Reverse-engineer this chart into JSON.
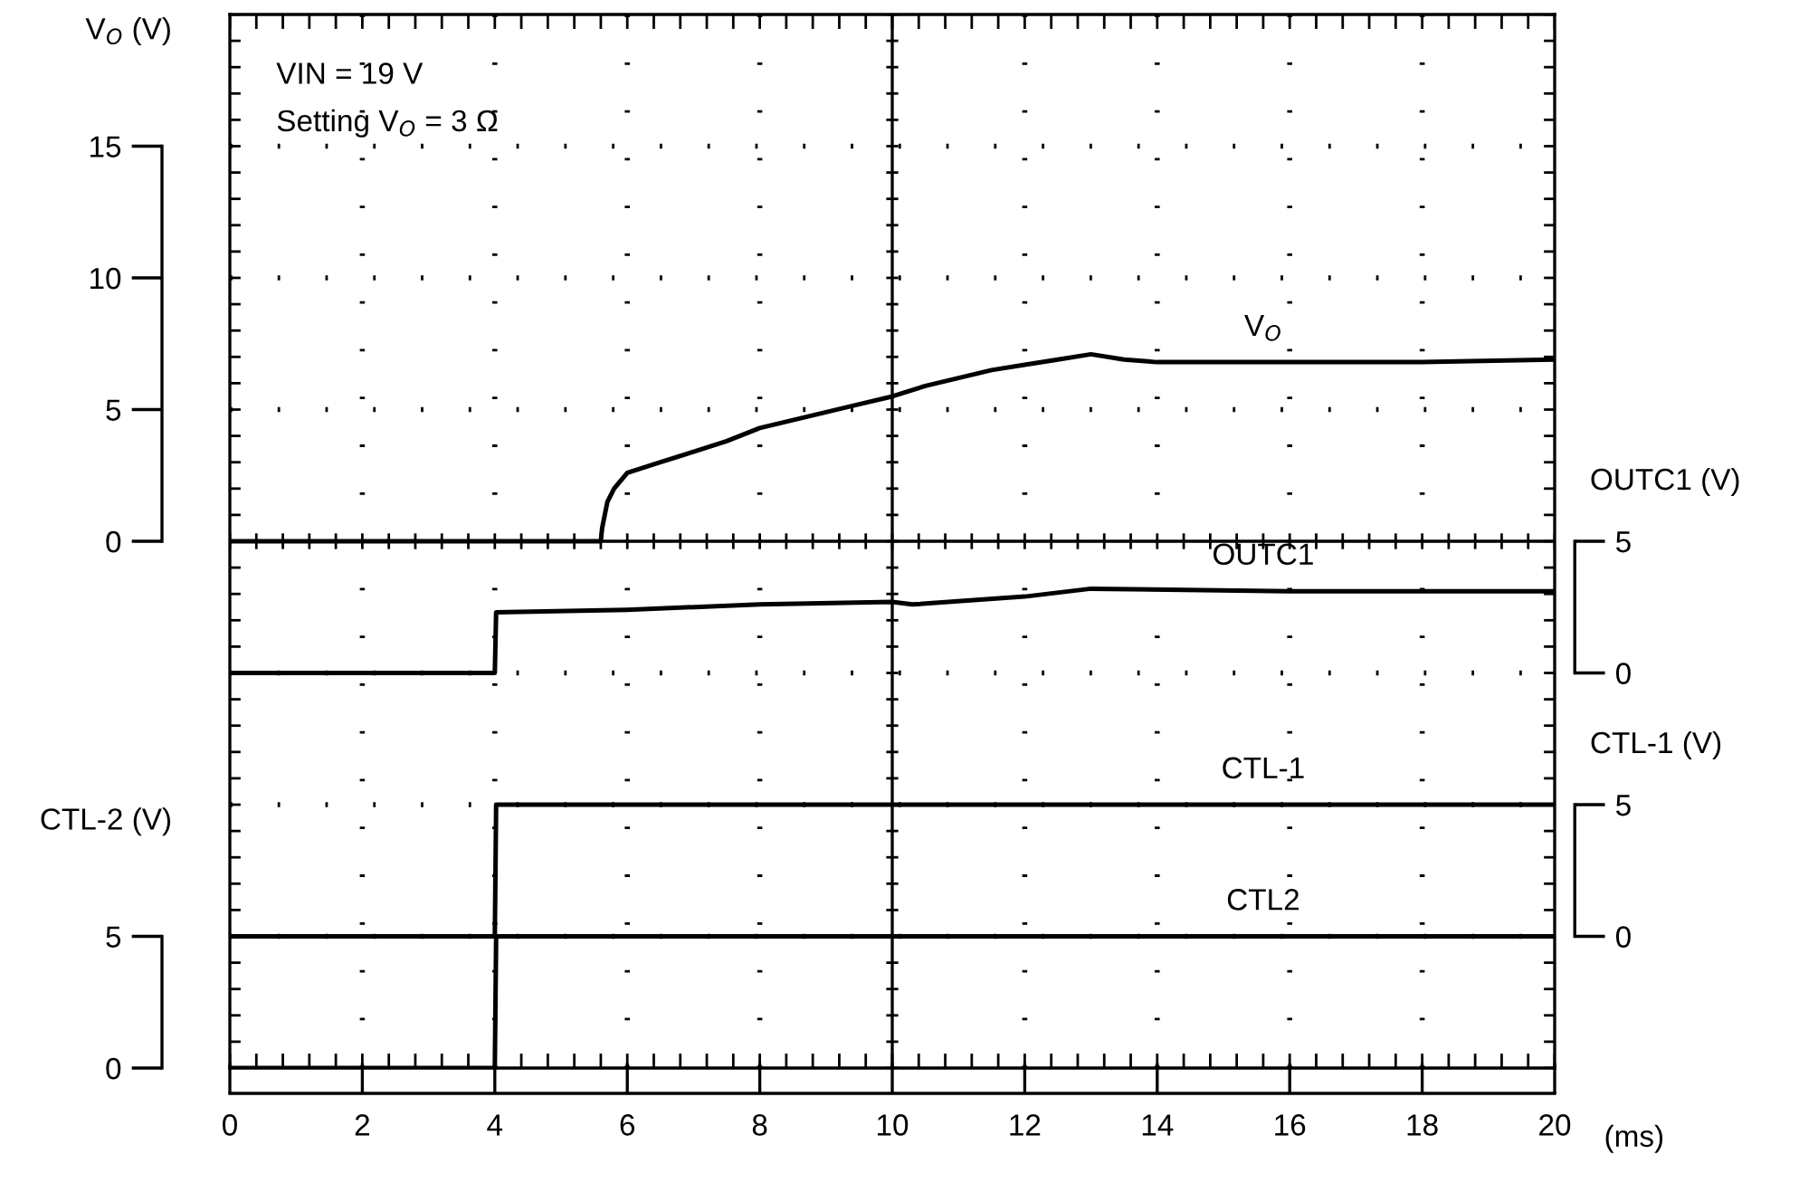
{
  "chart_data": [
    {
      "type": "line",
      "ylabel": "V$_{O}$ (V)",
      "y2label": "OUTC1 (V)",
      "xlim": [
        0,
        20
      ],
      "xticks": [
        0,
        2,
        4,
        6,
        8,
        10,
        12,
        14,
        16,
        18,
        20
      ],
      "ylim": [
        -20,
        20
      ],
      "yticks": [
        0,
        5,
        10,
        15
      ],
      "y2lim": [
        -15,
        25
      ],
      "y2ticks": [
        0,
        5
      ],
      "tick_labels": "y",
      "grid": true,
      "line_style": "solid",
      "marker": "none",
      "annotations": [
        "VIN = 19 V",
        "Setting V$_{O}$ = 3 Ω"
      ],
      "series": [
        {
          "name": "V$_{O}$",
          "color": "#000000",
          "x": [
            0,
            5.6,
            5.62,
            5.7,
            5.8,
            6,
            6.5,
            7,
            7.5,
            8,
            8.5,
            9,
            9.5,
            10,
            10.5,
            11,
            11.5,
            12,
            12.5,
            13,
            13.5,
            14,
            16,
            18,
            20
          ],
          "values": [
            0,
            0,
            0.5,
            1.5,
            2.0,
            2.6,
            3.0,
            3.4,
            3.8,
            4.3,
            4.6,
            4.9,
            5.2,
            5.5,
            5.9,
            6.2,
            6.5,
            6.7,
            6.9,
            7.1,
            6.9,
            6.8,
            6.8,
            6.8,
            6.9
          ]
        },
        {
          "name": "OUTC1",
          "color": "#000000",
          "axis": "y2",
          "x": [
            0,
            4,
            4.02,
            6,
            8,
            10,
            10.3,
            12,
            13,
            16,
            20
          ],
          "values": [
            0,
            0,
            2.3,
            2.4,
            2.6,
            2.7,
            2.6,
            2.9,
            3.2,
            3.1,
            3.1
          ]
        }
      ]
    },
    {
      "type": "line",
      "xlabel": "(ms)",
      "ylabel": "CTL-2 (V)",
      "y2label": "CTL-1 (V)",
      "xlim": [
        0,
        20
      ],
      "xticks": [
        0,
        2,
        4,
        6,
        8,
        10,
        12,
        14,
        16,
        18,
        20
      ],
      "ylim": [
        0,
        40
      ],
      "yticks": [
        0,
        5
      ],
      "y2lim": [
        -5,
        35
      ],
      "y2ticks": [
        0,
        5
      ],
      "legend": false,
      "line_style": "solid",
      "marker": "none",
      "series": [
        {
          "name": "CTL-1",
          "color": "#000000",
          "axis": "y2",
          "x": [
            0,
            4,
            4.02,
            20
          ],
          "values": [
            0,
            0,
            5,
            5
          ]
        },
        {
          "name": "CTL2",
          "color": "#000000",
          "x": [
            0,
            4,
            4.02,
            20
          ],
          "values": [
            0,
            0,
            5,
            5
          ]
        }
      ]
    }
  ]
}
